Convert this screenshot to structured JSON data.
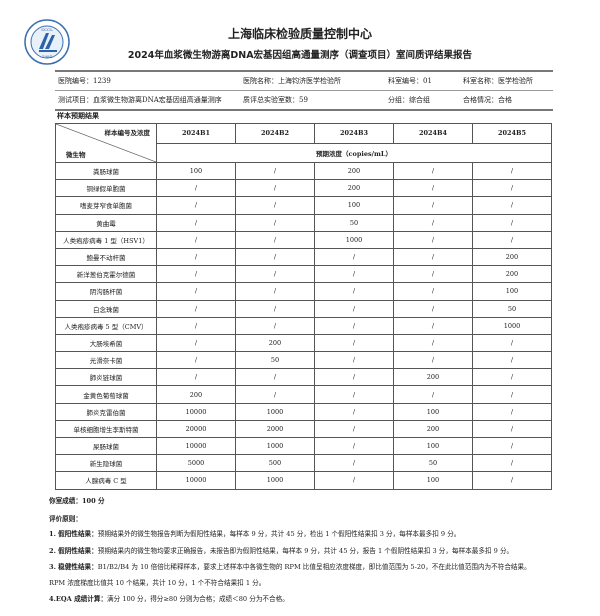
{
  "header": {
    "org": "上海临床检验质量控制中心",
    "report_title": "2024年血浆微生物游离DNA宏基因组高通量测序（调查项目）室间质评结果报告",
    "logo_text": "SCCL 1984"
  },
  "info": {
    "hospital_id": "医院编号：1239",
    "hospital_name": "医院名称：上海钧济医学检验所",
    "dept_id": "科室编号：01",
    "dept_name": "科室名称：医学检验所",
    "test_item": "测试项目：血浆微生物游离DNA宏基因组高通量测序",
    "total_labs": "质评总实验室数：59",
    "group": "分组：综合组",
    "pass_status": "合格情况：合格"
  },
  "section_title": "样本预期结果",
  "table": {
    "corner_top": "样本编号及浓度",
    "corner_bottom": "微生物",
    "samples": [
      "2024B1",
      "2024B2",
      "2024B3",
      "2024B4",
      "2024B5"
    ],
    "subheader": "预期浓度（copies/mL）",
    "rows": [
      [
        "粪肠球菌",
        "100",
        "/",
        "200",
        "/",
        "/"
      ],
      [
        "铜绿假单胞菌",
        "/",
        "/",
        "200",
        "/",
        "/"
      ],
      [
        "嗜麦芽窄食单胞菌",
        "/",
        "/",
        "100",
        "/",
        "/"
      ],
      [
        "黄曲霉",
        "/",
        "/",
        "50",
        "/",
        "/"
      ],
      [
        "人类疱疹病毒 1 型（HSV1）",
        "/",
        "/",
        "1000",
        "/",
        "/"
      ],
      [
        "鲍曼不动杆菌",
        "/",
        "/",
        "/",
        "/",
        "200"
      ],
      [
        "新洋葱伯克霍尔德菌",
        "/",
        "/",
        "/",
        "/",
        "200"
      ],
      [
        "阴沟肠杆菌",
        "/",
        "/",
        "/",
        "/",
        "100"
      ],
      [
        "白念珠菌",
        "/",
        "/",
        "/",
        "/",
        "50"
      ],
      [
        "人类疱疹病毒 5 型（CMV）",
        "/",
        "/",
        "/",
        "/",
        "1000"
      ],
      [
        "大肠埃希菌",
        "/",
        "200",
        "/",
        "/",
        "/"
      ],
      [
        "光滑奈卡菌",
        "/",
        "50",
        "/",
        "/",
        "/"
      ],
      [
        "肺炎链球菌",
        "/",
        "/",
        "/",
        "200",
        "/"
      ],
      [
        "金黄色葡萄球菌",
        "200",
        "/",
        "/",
        "/",
        "/"
      ],
      [
        "肺炎克雷伯菌",
        "10000",
        "1000",
        "/",
        "100",
        "/"
      ],
      [
        "单核细胞增生李斯特菌",
        "20000",
        "2000",
        "/",
        "200",
        "/"
      ],
      [
        "屎肠球菌",
        "10000",
        "1000",
        "/",
        "100",
        "/"
      ],
      [
        "新生隐球菌",
        "5000",
        "500",
        "/",
        "50",
        "/"
      ],
      [
        "人腺病毒 C 型",
        "10000",
        "1000",
        "/",
        "100",
        "/"
      ]
    ]
  },
  "footer": {
    "score": "你室成绩：100 分",
    "criteria_title": "评价原则：",
    "rules": [
      {
        "label": "1. 假阳性结果：",
        "text": "预期结果外的微生物报告判断为假阳性结果，每样本 9 分，共计 45 分，检出 1 个假阳性结果扣 3 分，每样本最多扣 9 分。"
      },
      {
        "label": "2. 假阴性结果：",
        "text": "预期结果内的微生物均要求正确报告，未报告即为假阴性结果，每样本 9 分，共计 45 分，报告 1 个假阴性结果扣 3 分，每样本最多扣 9 分。"
      },
      {
        "label": "3. 稳健性结果：",
        "text": "B1/B2/B4 为 10 倍倍比稀释样本，要求上述样本中各微生物的 RPM 比值呈相应浓度梯度，即比值范围为 5-20，不在此比值范围内为不符合结果。"
      },
      {
        "label": "",
        "text": "RPM 浓度梯度比值共 10 个结果，共计 10 分，1 个不符合结果扣 1 分。"
      },
      {
        "label": "4.EQA 成绩计算：",
        "text": "满分 100 分，得分≥80 分则为合格；成绩＜80 分为不合格。"
      }
    ]
  }
}
